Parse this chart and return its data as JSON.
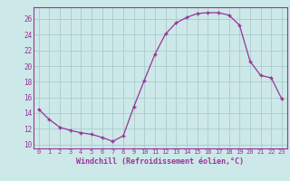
{
  "x": [
    0,
    1,
    2,
    3,
    4,
    5,
    6,
    7,
    8,
    9,
    10,
    11,
    12,
    13,
    14,
    15,
    16,
    17,
    18,
    19,
    20,
    21,
    22,
    23
  ],
  "y": [
    14.5,
    13.2,
    12.2,
    11.8,
    11.5,
    11.3,
    10.9,
    10.4,
    11.1,
    14.8,
    18.2,
    21.5,
    24.1,
    25.5,
    26.2,
    26.7,
    26.8,
    26.8,
    26.5,
    25.2,
    20.6,
    18.8,
    18.5,
    15.8
  ],
  "line_color": "#993399",
  "marker": "+",
  "bg_color": "#cce8e8",
  "grid_color": "#aacccc",
  "text_color": "#993399",
  "xlabel": "Windchill (Refroidissement éolien,°C)",
  "xlim": [
    -0.5,
    23.5
  ],
  "ylim": [
    9.5,
    27.5
  ],
  "yticks": [
    10,
    12,
    14,
    16,
    18,
    20,
    22,
    24,
    26
  ],
  "xticks": [
    0,
    1,
    2,
    3,
    4,
    5,
    6,
    7,
    8,
    9,
    10,
    11,
    12,
    13,
    14,
    15,
    16,
    17,
    18,
    19,
    20,
    21,
    22,
    23
  ],
  "spine_color": "#993399",
  "tick_color": "#993399",
  "xlabel_fontsize": 6.0,
  "ytick_fontsize": 5.5,
  "xtick_fontsize": 5.0
}
